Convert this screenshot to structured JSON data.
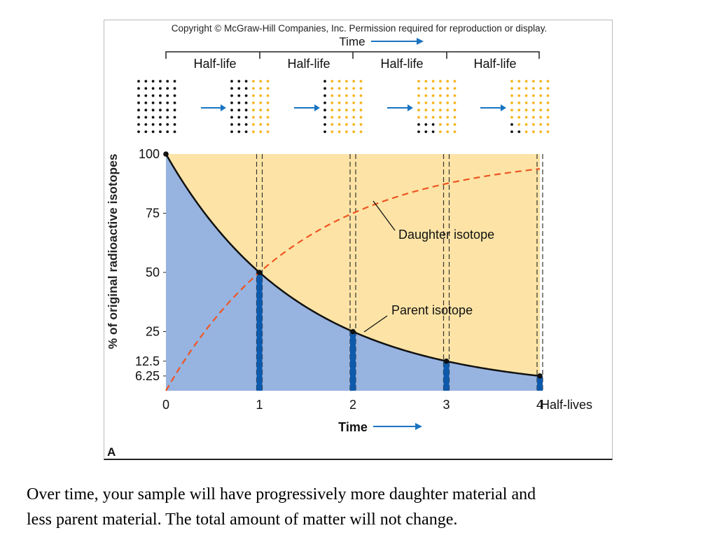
{
  "copyright": "Copyright © McGraw-Hill Companies, Inc. Permission required for reproduction or display.",
  "top_time_label": "Time",
  "half_life_label": "Half-life",
  "panel_label": "A",
  "caption": {
    "line1": "Over time, your sample will have progressively more daughter material and",
    "line2": "less parent material.  The total amount of matter will not change."
  },
  "colors": {
    "parent_fill": "#97b3e0",
    "daughter_fill": "#fde4a6",
    "daughter_line": "#ee5522",
    "bar": "#0d5aad",
    "arrow": "#1a74c2",
    "dot_parent": "#111111",
    "dot_daughter": "#f7b520"
  },
  "dot_grids": [
    {
      "parent_dots": 48
    },
    {
      "parent_dots": 24
    },
    {
      "parent_dots": 12
    },
    {
      "parent_dots": 6
    },
    {
      "parent_dots": 3
    }
  ],
  "chart_data": {
    "type": "line",
    "title": "",
    "xlabel": "Time",
    "ylabel": "% of original radioactive isotopes",
    "x_unit_label": "Half-lives",
    "xlim": [
      0,
      4
    ],
    "ylim": [
      0,
      100
    ],
    "x_ticks": [
      "0",
      "1",
      "2",
      "3",
      "4"
    ],
    "y_ticks": [
      {
        "value": 100,
        "label": "100"
      },
      {
        "value": 75,
        "label": "75"
      },
      {
        "value": 50,
        "label": "50"
      },
      {
        "value": 25,
        "label": "25"
      },
      {
        "value": 12.5,
        "label": "12.5"
      },
      {
        "value": 6.25,
        "label": "6.25"
      }
    ],
    "series": [
      {
        "name": "Parent isotope",
        "x": [
          0,
          1,
          2,
          3,
          4
        ],
        "values": [
          100,
          50,
          25,
          12.5,
          6.25
        ],
        "style": "solid"
      },
      {
        "name": "Daughter isotope",
        "x": [
          0,
          1,
          2,
          3,
          4
        ],
        "values": [
          0,
          50,
          75,
          87.5,
          93.75
        ],
        "style": "dashed"
      }
    ],
    "grid": false
  }
}
